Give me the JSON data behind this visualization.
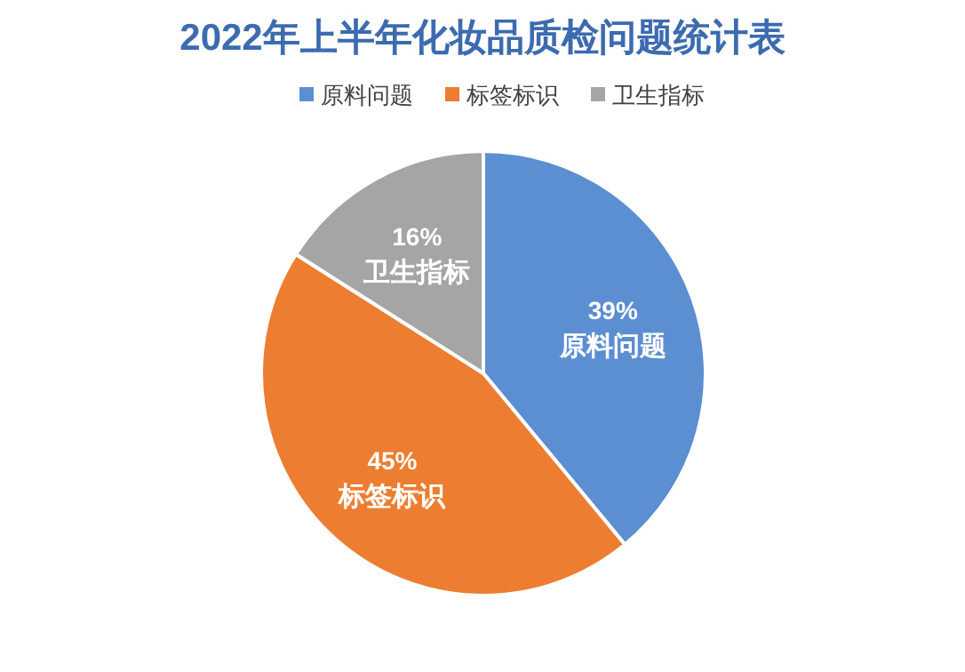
{
  "chart_data": {
    "type": "pie",
    "title": "2022年上半年化妆品质检问题统计表",
    "categories": [
      "原料问题",
      "标签标识",
      "卫生指标"
    ],
    "values": [
      39,
      45,
      16
    ],
    "colors": [
      "#5b8fd2",
      "#ed7d31",
      "#a5a5a5"
    ],
    "value_labels": [
      "39%",
      "45%",
      "16%"
    ],
    "legend": "top"
  }
}
